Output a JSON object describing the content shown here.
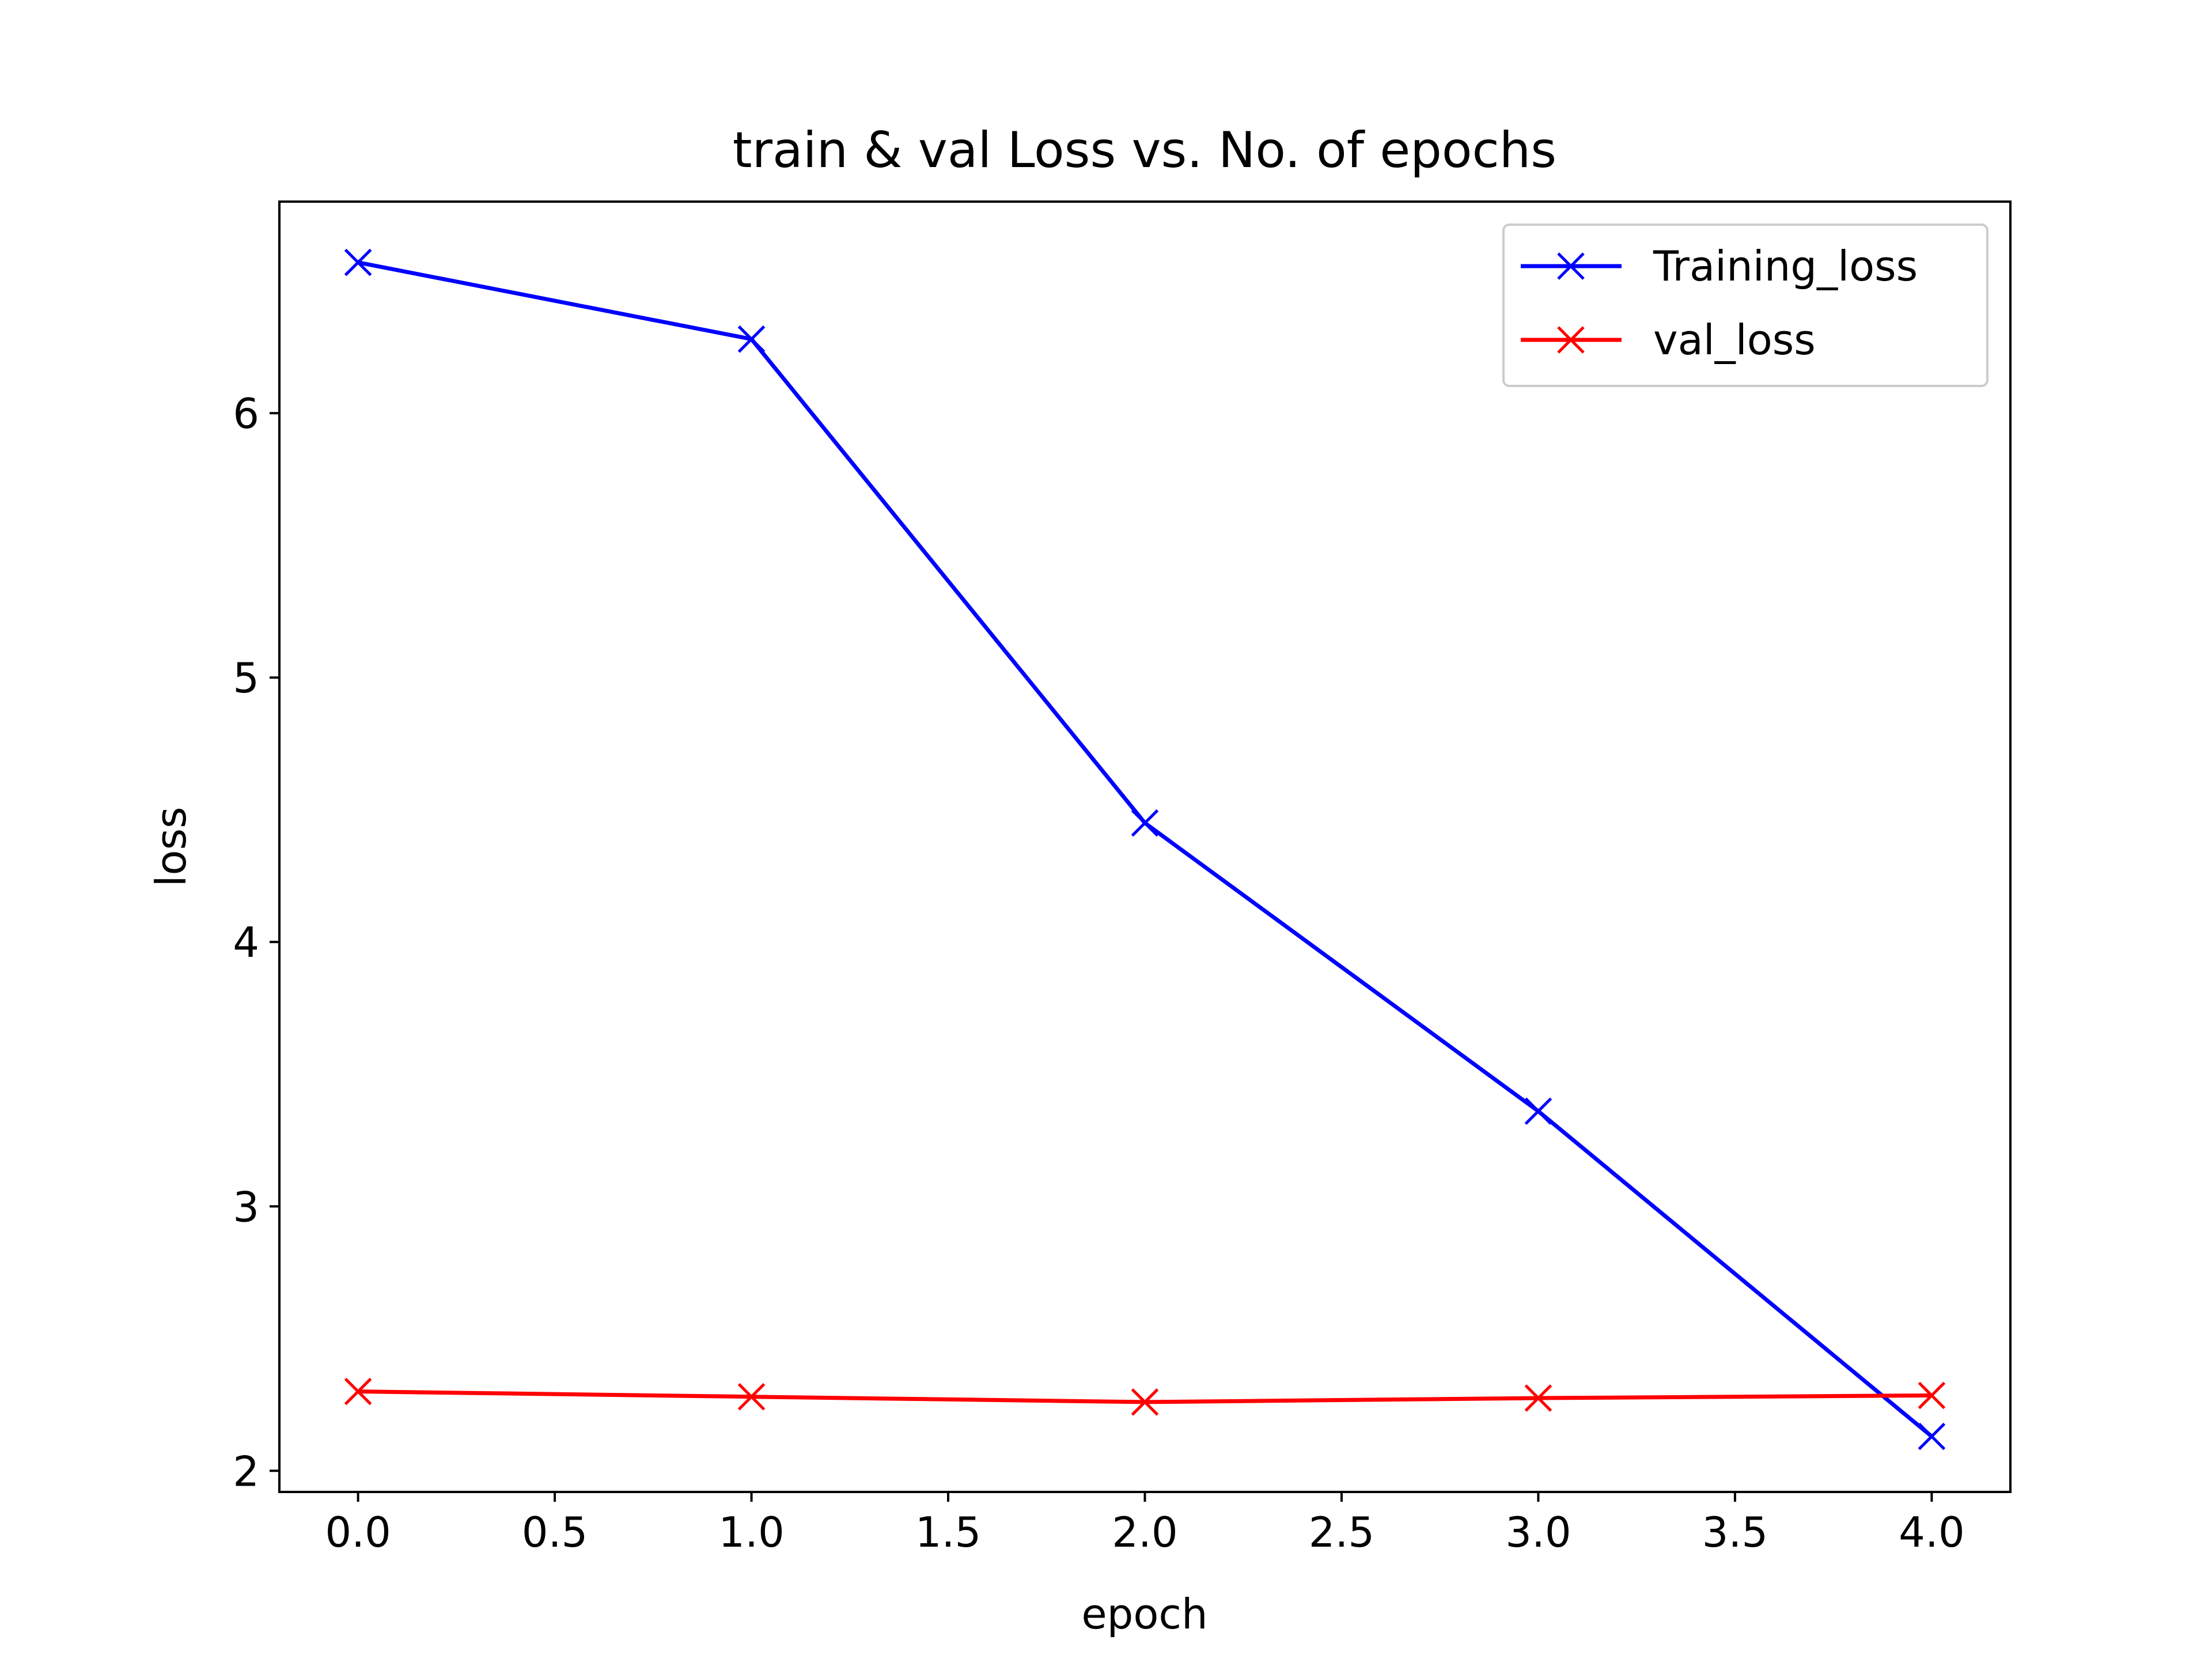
{
  "chart_data": {
    "type": "line",
    "title": "train & val Loss vs. No. of epochs",
    "xlabel": "epoch",
    "ylabel": "loss",
    "x": [
      0,
      1,
      2,
      3,
      4
    ],
    "xlim": [
      -0.2,
      4.2
    ],
    "ylim": [
      1.92,
      6.8
    ],
    "xticks": [
      0.0,
      0.5,
      1.0,
      1.5,
      2.0,
      2.5,
      3.0,
      3.5,
      4.0
    ],
    "xtick_labels": [
      "0.0",
      "0.5",
      "1.0",
      "1.5",
      "2.0",
      "2.5",
      "3.0",
      "3.5",
      "4.0"
    ],
    "yticks": [
      2,
      3,
      4,
      5,
      6
    ],
    "ytick_labels": [
      "2",
      "3",
      "4",
      "5",
      "6"
    ],
    "grid": false,
    "legend_position": "top-right",
    "series": [
      {
        "name": "Training_loss",
        "color": "#0000ff",
        "marker": "x",
        "values": [
          6.57,
          6.28,
          4.45,
          3.36,
          2.13
        ]
      },
      {
        "name": "val_loss",
        "color": "#ff0000",
        "marker": "x",
        "values": [
          2.3,
          2.28,
          2.26,
          2.275,
          2.285
        ]
      }
    ]
  }
}
